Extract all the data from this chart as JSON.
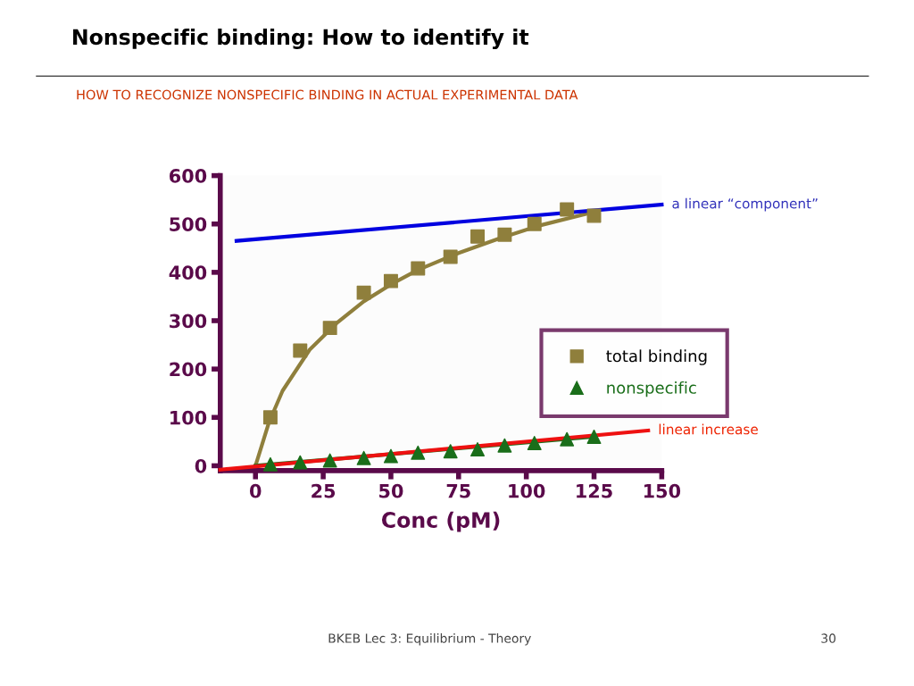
{
  "chart_data": {
    "type": "scatter",
    "title": "Nonspecific binding: How to identify it",
    "subtitle": "HOW TO RECOGNIZE NONSPECIFIC BINDING IN ACTUAL EXPERIMENTAL DATA",
    "xlabel": "Conc (pM)",
    "xlim": [
      -13,
      150
    ],
    "ylim": [
      -10,
      600
    ],
    "xticks": [
      0,
      25,
      50,
      75,
      100,
      125,
      150
    ],
    "yticks": [
      0,
      100,
      200,
      300,
      400,
      500,
      600
    ],
    "grid": false,
    "legend": "right",
    "series": [
      {
        "name": "total binding",
        "color": "#8f7f3c",
        "marker": "square",
        "x": [
          5.5,
          16.5,
          27.5,
          40,
          50,
          60,
          72,
          82,
          92,
          103,
          115,
          125
        ],
        "values": [
          100,
          238,
          285,
          358,
          382,
          408,
          432,
          474,
          478,
          500,
          530,
          517
        ]
      },
      {
        "name": "nonspecific",
        "color": "#1a6e1a",
        "marker": "triangle",
        "x": [
          5.5,
          16.5,
          27.5,
          40,
          50,
          60,
          72,
          82,
          92,
          103,
          115,
          125
        ],
        "values": [
          3,
          7,
          11,
          16,
          20,
          27,
          30,
          34,
          42,
          47,
          55,
          60
        ]
      },
      {
        "type": "line",
        "color": "#8f7f3c",
        "marker": "none",
        "x": [
          0,
          5,
          10,
          20,
          30,
          40,
          50,
          60,
          75,
          90,
          105,
          125
        ],
        "values": [
          0,
          90,
          155,
          240,
          295,
          340,
          375,
          405,
          440,
          470,
          497,
          525
        ]
      },
      {
        "type": "line",
        "color": "#1a6e1a",
        "marker": "none",
        "x": [
          0,
          125
        ],
        "values": [
          0,
          60
        ]
      },
      {
        "type": "line",
        "color": "#0000e0",
        "marker": "none",
        "x": [
          -7,
          150
        ],
        "values": [
          465,
          540
        ]
      },
      {
        "type": "line",
        "color": "#ee1111",
        "marker": "none",
        "x": [
          -13,
          145
        ],
        "values": [
          -8,
          73
        ]
      }
    ],
    "annotations": [
      {
        "text": "a linear “component”",
        "x": 150,
        "y": 540
      },
      {
        "text": "linear increase",
        "x": 145,
        "y": 73
      },
      "BKEB Lec 3: Equilibrium - Theory",
      "30"
    ]
  }
}
